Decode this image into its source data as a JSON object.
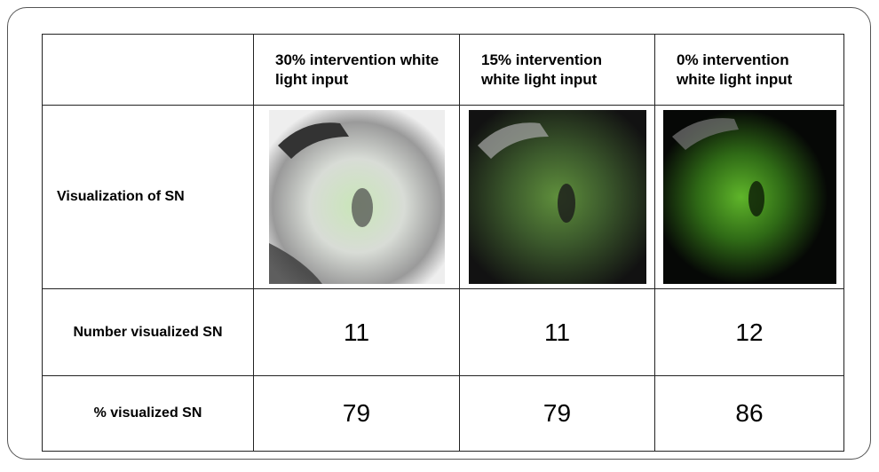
{
  "table": {
    "columns": [
      "30% intervention white light input",
      "15% intervention white light input",
      "0% intervention white light input"
    ],
    "rows": [
      {
        "label": "Visualization of SN"
      },
      {
        "label": "Number visualized SN",
        "values": [
          11,
          11,
          12
        ]
      },
      {
        "label": "% visualized SN",
        "values": [
          79,
          79,
          86
        ]
      }
    ]
  }
}
